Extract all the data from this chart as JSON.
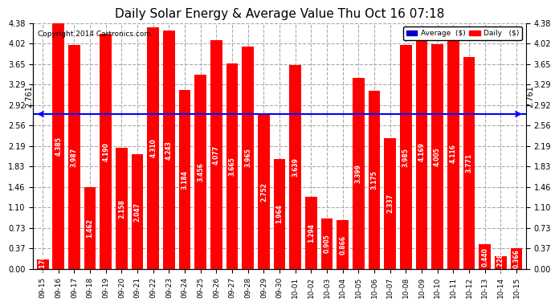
{
  "title": "Daily Solar Energy & Average Value Thu Oct 16 07:18",
  "copyright": "Copyright 2014 Cartronics.com",
  "average_value": 2.761,
  "average_label": "2.761",
  "bar_color": "#FF0000",
  "average_line_color": "#0000FF",
  "background_color": "#FFFFFF",
  "plot_bg_color": "#FFFFFF",
  "grid_color": "#AAAAAA",
  "categories": [
    "09-15",
    "09-16",
    "09-17",
    "09-18",
    "09-19",
    "09-20",
    "09-21",
    "09-22",
    "09-23",
    "09-24",
    "09-25",
    "09-26",
    "09-27",
    "09-28",
    "09-29",
    "09-30",
    "10-01",
    "10-02",
    "10-03",
    "10-04",
    "10-05",
    "10-06",
    "10-07",
    "10-08",
    "10-09",
    "10-10",
    "10-11",
    "10-12",
    "10-13",
    "10-14",
    "10-15"
  ],
  "values": [
    0.178,
    4.385,
    3.987,
    1.462,
    4.19,
    2.158,
    2.047,
    4.31,
    4.243,
    3.184,
    3.456,
    4.077,
    3.665,
    3.965,
    2.752,
    1.964,
    3.639,
    1.294,
    0.905,
    0.866,
    3.399,
    3.175,
    2.337,
    3.985,
    4.169,
    4.005,
    4.116,
    3.771,
    0.44,
    0.228,
    0.366
  ],
  "ylim": [
    0,
    4.38
  ],
  "yticks": [
    0.0,
    0.37,
    0.73,
    1.1,
    1.46,
    1.83,
    2.19,
    2.56,
    2.92,
    3.29,
    3.65,
    4.02,
    4.38
  ],
  "legend_avg_color": "#0000CD",
  "legend_daily_color": "#FF0000",
  "legend_avg_text": "Average  ($)",
  "legend_daily_text": "Daily   ($)"
}
